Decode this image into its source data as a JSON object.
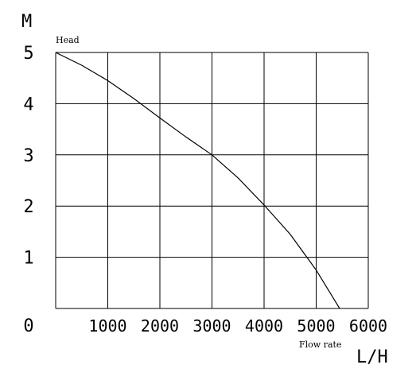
{
  "chart_data": {
    "type": "line",
    "title": "",
    "xlabel": "Flow rate",
    "xunit": "L/H",
    "ylabel": "Head",
    "yunit": "M",
    "xlim": [
      0,
      6000
    ],
    "ylim": [
      0,
      5
    ],
    "grid": true,
    "x_ticks": [
      "1000",
      "2000",
      "3000",
      "4000",
      "5000",
      "6000"
    ],
    "y_ticks": [
      "0",
      "1",
      "2",
      "3",
      "4",
      "5"
    ],
    "series": [
      {
        "x": [
          0,
          500,
          1000,
          1500,
          2000,
          2500,
          3000,
          3500,
          4000,
          4500,
          5000,
          5450
        ],
        "y": [
          5.0,
          4.75,
          4.45,
          4.1,
          3.72,
          3.35,
          3.0,
          2.55,
          2.02,
          1.45,
          0.75,
          0.0
        ]
      }
    ]
  }
}
